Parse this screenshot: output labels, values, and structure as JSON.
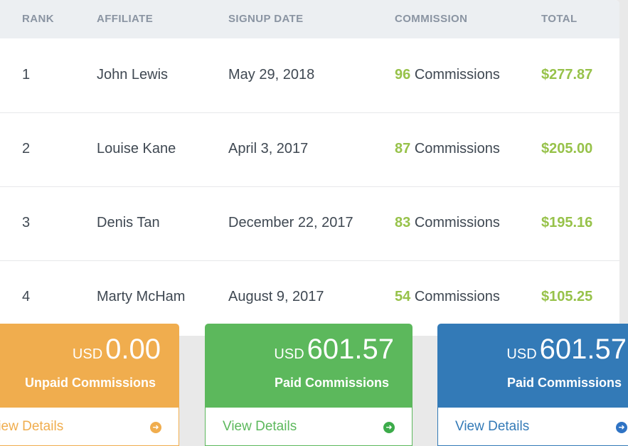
{
  "table": {
    "headers": {
      "rank": "RANK",
      "affiliate": "AFFILIATE",
      "signup_date": "SIGNUP DATE",
      "commission": "COMMISSION",
      "total": "TOTAL"
    },
    "rows": [
      {
        "rank": "1",
        "affiliate": "John Lewis",
        "signup_date": "May 29, 2018",
        "commission_count": "96",
        "commission_label": "Commissions",
        "total": "$277.87"
      },
      {
        "rank": "2",
        "affiliate": "Louise Kane",
        "signup_date": "April 3, 2017",
        "commission_count": "87",
        "commission_label": "Commissions",
        "total": "$205.00"
      },
      {
        "rank": "3",
        "affiliate": "Denis Tan",
        "signup_date": "December 22, 2017",
        "commission_count": "83",
        "commission_label": "Commissions",
        "total": "$195.16"
      },
      {
        "rank": "4",
        "affiliate": "Marty McHam",
        "signup_date": "August 9, 2017",
        "commission_count": "54",
        "commission_label": "Commissions",
        "total": "$105.25"
      }
    ]
  },
  "cards": [
    {
      "currency": "USD",
      "amount": "0.00",
      "label": "Unpaid Commissions",
      "link": "View Details",
      "color": "#f0ad4e",
      "icon": "arrow-right-circle-icon"
    },
    {
      "currency": "USD",
      "amount": "601.57",
      "label": "Paid Commissions",
      "link": "View Details",
      "color": "#5cb85c",
      "icon": "arrow-right-circle-icon"
    },
    {
      "currency": "USD",
      "amount": "601.57",
      "label": "Paid Commissions",
      "link": "View Details",
      "color": "#337ab7",
      "icon": "arrow-right-circle-icon"
    }
  ],
  "colors": {
    "accent_green": "#97c24a",
    "header_bg": "#eceff2",
    "header_text": "#8a94a2"
  }
}
